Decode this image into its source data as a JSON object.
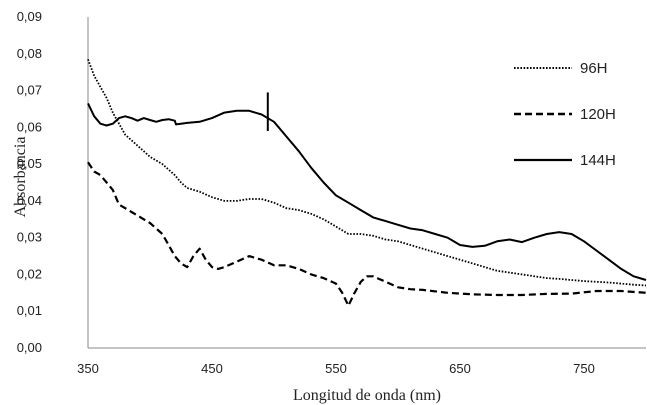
{
  "chart_data": {
    "type": "line",
    "title": "",
    "xlabel": "Longitud de onda (nm)",
    "ylabel": "Absorbancia",
    "xlim": [
      350,
      800
    ],
    "ylim": [
      0,
      0.09
    ],
    "x_ticks": [
      350,
      450,
      550,
      650,
      750
    ],
    "x_tick_labels": [
      "350",
      "450",
      "550",
      "650",
      "750"
    ],
    "y_ticks": [
      0,
      0.01,
      0.02,
      0.03,
      0.04,
      0.05,
      0.06,
      0.07,
      0.08,
      0.09
    ],
    "y_tick_labels": [
      "0,00",
      "0,01",
      "0,02",
      "0,03",
      "0,04",
      "0,05",
      "0,06",
      "0,07",
      "0,08",
      "0,09"
    ],
    "grid": false,
    "legend_position": "top-right",
    "series": [
      {
        "name": "96H",
        "style": "dotted",
        "color": "#000000",
        "x": [
          350,
          355,
          360,
          365,
          370,
          375,
          380,
          390,
          400,
          410,
          420,
          425,
          430,
          440,
          450,
          460,
          470,
          480,
          490,
          500,
          510,
          520,
          530,
          540,
          550,
          560,
          570,
          580,
          590,
          600,
          610,
          620,
          630,
          640,
          650,
          660,
          670,
          680,
          690,
          700,
          710,
          720,
          730,
          740,
          750,
          760,
          770,
          780,
          790,
          800
        ],
        "y": [
          0.0785,
          0.074,
          0.071,
          0.068,
          0.064,
          0.061,
          0.058,
          0.055,
          0.052,
          0.05,
          0.047,
          0.045,
          0.0435,
          0.0425,
          0.041,
          0.04,
          0.04,
          0.0405,
          0.0405,
          0.0395,
          0.038,
          0.0375,
          0.0365,
          0.035,
          0.033,
          0.031,
          0.031,
          0.0305,
          0.0295,
          0.029,
          0.028,
          0.027,
          0.026,
          0.025,
          0.024,
          0.023,
          0.022,
          0.021,
          0.0205,
          0.02,
          0.0195,
          0.019,
          0.0188,
          0.0185,
          0.0182,
          0.018,
          0.0178,
          0.0175,
          0.0172,
          0.017
        ]
      },
      {
        "name": "120H",
        "style": "dashed",
        "color": "#000000",
        "x": [
          350,
          355,
          360,
          365,
          370,
          375,
          380,
          390,
          400,
          410,
          420,
          425,
          430,
          435,
          440,
          445,
          450,
          455,
          460,
          470,
          480,
          490,
          500,
          510,
          520,
          530,
          540,
          550,
          555,
          560,
          565,
          570,
          575,
          580,
          590,
          600,
          610,
          620,
          640,
          660,
          680,
          700,
          720,
          740,
          760,
          780,
          800
        ],
        "y": [
          0.0505,
          0.048,
          0.047,
          0.045,
          0.043,
          0.039,
          0.038,
          0.036,
          0.034,
          0.031,
          0.025,
          0.023,
          0.022,
          0.025,
          0.027,
          0.024,
          0.022,
          0.0215,
          0.022,
          0.0235,
          0.025,
          0.024,
          0.0225,
          0.0225,
          0.0215,
          0.02,
          0.019,
          0.0175,
          0.015,
          0.0115,
          0.015,
          0.018,
          0.0195,
          0.0195,
          0.018,
          0.0165,
          0.016,
          0.0158,
          0.015,
          0.0146,
          0.0144,
          0.0144,
          0.0147,
          0.0148,
          0.0155,
          0.0155,
          0.015
        ]
      },
      {
        "name": "144H",
        "style": "solid",
        "color": "#000000",
        "x": [
          350,
          355,
          360,
          365,
          370,
          375,
          380,
          385,
          390,
          395,
          400,
          405,
          410,
          415,
          420,
          421,
          425,
          430,
          440,
          450,
          460,
          470,
          480,
          490,
          500,
          510,
          520,
          530,
          540,
          550,
          560,
          570,
          580,
          590,
          600,
          610,
          620,
          630,
          640,
          650,
          660,
          670,
          680,
          690,
          700,
          710,
          720,
          730,
          740,
          750,
          760,
          770,
          780,
          790,
          800
        ],
        "y": [
          0.0665,
          0.063,
          0.061,
          0.0605,
          0.061,
          0.0625,
          0.063,
          0.0625,
          0.0618,
          0.0625,
          0.062,
          0.0615,
          0.062,
          0.0622,
          0.0618,
          0.0608,
          0.061,
          0.0612,
          0.0615,
          0.0625,
          0.064,
          0.0645,
          0.0645,
          0.0635,
          0.0615,
          0.0575,
          0.0535,
          0.049,
          0.045,
          0.0415,
          0.0395,
          0.0375,
          0.0355,
          0.0345,
          0.0335,
          0.0325,
          0.032,
          0.031,
          0.03,
          0.028,
          0.0275,
          0.0278,
          0.029,
          0.0295,
          0.0288,
          0.03,
          0.031,
          0.0315,
          0.031,
          0.029,
          0.0265,
          0.024,
          0.0215,
          0.0195,
          0.0185
        ]
      }
    ],
    "annotations": [
      {
        "type": "vertical-marker",
        "series": "144H",
        "x": 495,
        "y_from": 0.059,
        "y_to": 0.0695
      }
    ]
  }
}
